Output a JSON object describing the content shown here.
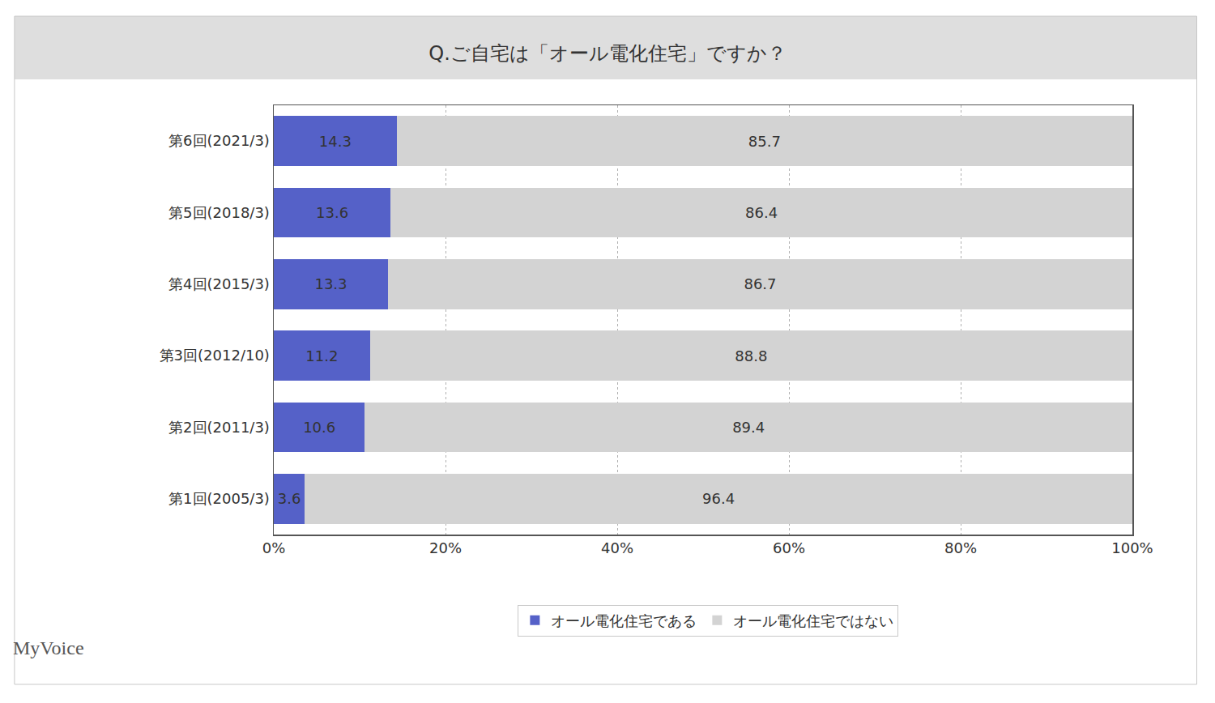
{
  "chart_data": {
    "type": "bar",
    "title": "Q.ご自宅は「オール電化住宅」ですか？",
    "orientation": "horizontal",
    "stacked": true,
    "data_labels": true,
    "grid": true,
    "legend": "bottom",
    "categories": [
      "第6回(2021/3)",
      "第5回(2018/3)",
      "第4回(2015/3)",
      "第3回(2012/10)",
      "第2回(2011/3)",
      "第1回(2005/3)"
    ],
    "series": [
      {
        "name": "オール電化住宅である",
        "color": "#5561c8",
        "values": [
          14.3,
          13.6,
          13.3,
          11.2,
          10.6,
          3.6
        ]
      },
      {
        "name": "オール電化住宅ではない",
        "color": "#d3d3d3",
        "values": [
          85.7,
          86.4,
          86.7,
          88.8,
          89.4,
          96.4
        ]
      }
    ],
    "xlim": [
      0,
      100
    ],
    "xticks": [
      {
        "value": 0,
        "label": "0%"
      },
      {
        "value": 20,
        "label": "20%"
      },
      {
        "value": 40,
        "label": "40%"
      },
      {
        "value": 60,
        "label": "60%"
      },
      {
        "value": 80,
        "label": "80%"
      },
      {
        "value": 100,
        "label": "100%"
      }
    ],
    "annotations": [
      "MyVoice"
    ]
  }
}
